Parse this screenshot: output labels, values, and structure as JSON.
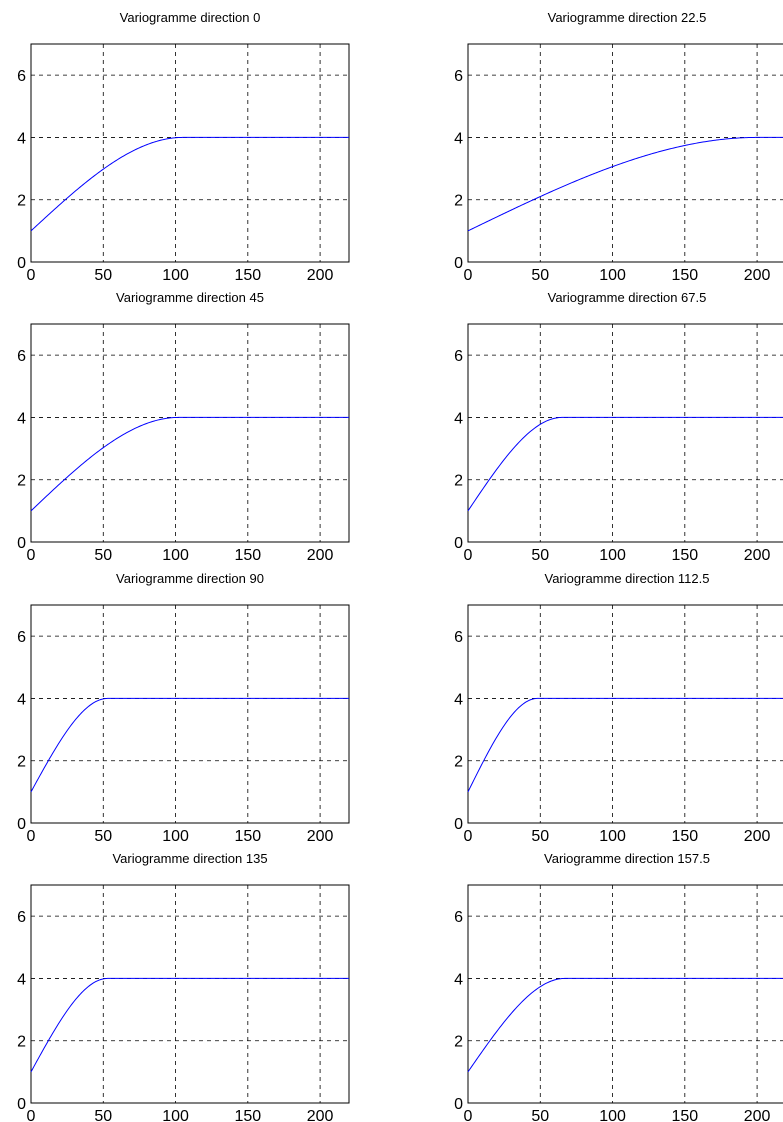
{
  "chart_data": [
    {
      "type": "line",
      "title": "Variogramme direction 0",
      "xlim": [
        0,
        220
      ],
      "ylim": [
        0,
        7
      ],
      "xticks": [
        0,
        50,
        100,
        150,
        200
      ],
      "yticks": [
        0,
        2,
        4,
        6
      ],
      "grid": true,
      "series": [
        {
          "color": "#0000ff",
          "model": "spherical",
          "nugget": 1,
          "sill": 4,
          "range": 105
        }
      ]
    },
    {
      "type": "line",
      "title": "Variogramme direction 22.5",
      "xlim": [
        0,
        220
      ],
      "ylim": [
        0,
        7
      ],
      "xticks": [
        0,
        50,
        100,
        150,
        200
      ],
      "yticks": [
        0,
        2,
        4,
        6
      ],
      "grid": true,
      "series": [
        {
          "color": "#0000ff",
          "model": "spherical",
          "nugget": 1,
          "sill": 4,
          "range": 200
        }
      ]
    },
    {
      "type": "line",
      "title": "Variogramme direction 45",
      "xlim": [
        0,
        220
      ],
      "ylim": [
        0,
        7
      ],
      "xticks": [
        0,
        50,
        100,
        150,
        200
      ],
      "yticks": [
        0,
        2,
        4,
        6
      ],
      "grid": true,
      "series": [
        {
          "color": "#0000ff",
          "model": "spherical",
          "nugget": 1,
          "sill": 4,
          "range": 102
        }
      ]
    },
    {
      "type": "line",
      "title": "Variogramme direction 67.5",
      "xlim": [
        0,
        220
      ],
      "ylim": [
        0,
        7
      ],
      "xticks": [
        0,
        50,
        100,
        150,
        200
      ],
      "yticks": [
        0,
        2,
        4,
        6
      ],
      "grid": true,
      "series": [
        {
          "color": "#0000ff",
          "model": "spherical",
          "nugget": 1,
          "sill": 4,
          "range": 65
        }
      ]
    },
    {
      "type": "line",
      "title": "Variogramme direction 90",
      "xlim": [
        0,
        220
      ],
      "ylim": [
        0,
        7
      ],
      "xticks": [
        0,
        50,
        100,
        150,
        200
      ],
      "yticks": [
        0,
        2,
        4,
        6
      ],
      "grid": true,
      "series": [
        {
          "color": "#0000ff",
          "model": "spherical",
          "nugget": 1,
          "sill": 4,
          "range": 53
        }
      ]
    },
    {
      "type": "line",
      "title": "Variogramme direction 112.5",
      "xlim": [
        0,
        220
      ],
      "ylim": [
        0,
        7
      ],
      "xticks": [
        0,
        50,
        100,
        150,
        200
      ],
      "yticks": [
        0,
        2,
        4,
        6
      ],
      "grid": true,
      "series": [
        {
          "color": "#0000ff",
          "model": "spherical",
          "nugget": 1,
          "sill": 4,
          "range": 48
        }
      ]
    },
    {
      "type": "line",
      "title": "Variogramme direction 135",
      "xlim": [
        0,
        220
      ],
      "ylim": [
        0,
        7
      ],
      "xticks": [
        0,
        50,
        100,
        150,
        200
      ],
      "yticks": [
        0,
        2,
        4,
        6
      ],
      "grid": true,
      "series": [
        {
          "color": "#0000ff",
          "model": "spherical",
          "nugget": 1,
          "sill": 4,
          "range": 53
        }
      ]
    },
    {
      "type": "line",
      "title": "Variogramme direction 157.5",
      "xlim": [
        0,
        220
      ],
      "ylim": [
        0,
        7
      ],
      "xticks": [
        0,
        50,
        100,
        150,
        200
      ],
      "yticks": [
        0,
        2,
        4,
        6
      ],
      "grid": true,
      "series": [
        {
          "color": "#0000ff",
          "model": "spherical",
          "nugget": 1,
          "sill": 4,
          "range": 67
        }
      ]
    }
  ]
}
